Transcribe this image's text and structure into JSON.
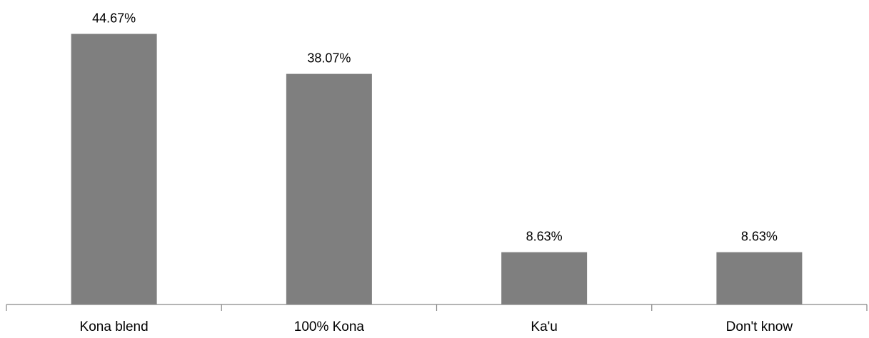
{
  "chart_data": {
    "type": "bar",
    "title": "",
    "xlabel": "",
    "ylabel": "",
    "categories": [
      "Kona blend",
      "100% Kona",
      "Ka'u",
      "Don't know"
    ],
    "values": [
      44.67,
      38.07,
      8.63,
      8.63
    ],
    "data_labels": [
      "44.67%",
      "38.07%",
      "8.63%",
      "8.63%"
    ],
    "ylim": [
      0,
      50
    ],
    "grid": false,
    "legend": "none",
    "colors": {
      "bar": "#7f7f7f",
      "axis": "#868686",
      "text": "#000000",
      "background": "#ffffff"
    }
  }
}
